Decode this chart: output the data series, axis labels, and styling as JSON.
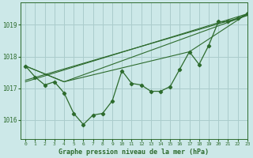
{
  "title": "Graphe pression niveau de la mer (hPa)",
  "bg_color": "#cce8e8",
  "grid_color": "#aacccc",
  "line_color": "#2d6b2d",
  "xlim": [
    -0.5,
    23
  ],
  "ylim": [
    1015.4,
    1019.7
  ],
  "yticks": [
    1016,
    1017,
    1018,
    1019
  ],
  "xticks": [
    0,
    1,
    2,
    3,
    4,
    5,
    6,
    7,
    8,
    9,
    10,
    11,
    12,
    13,
    14,
    15,
    16,
    17,
    18,
    19,
    20,
    21,
    22,
    23
  ],
  "main_series_x": [
    0,
    1,
    2,
    3,
    4,
    5,
    6,
    7,
    8,
    9,
    10,
    11,
    12,
    13,
    14,
    15,
    16,
    17,
    18,
    19,
    20,
    21,
    22,
    23
  ],
  "main_series_y": [
    1017.7,
    1017.35,
    1017.1,
    1017.2,
    1016.85,
    1016.2,
    1015.85,
    1016.15,
    1016.2,
    1016.6,
    1017.55,
    1017.15,
    1017.1,
    1016.9,
    1016.9,
    1017.05,
    1017.6,
    1018.15,
    1017.75,
    1018.35,
    1019.1,
    1019.1,
    1019.2,
    1019.35
  ],
  "line1_x": [
    0,
    23
  ],
  "line1_y": [
    1017.25,
    1019.3
  ],
  "line2_x": [
    0,
    23
  ],
  "line2_y": [
    1017.2,
    1019.35
  ],
  "line3_x": [
    0,
    4,
    23
  ],
  "line3_y": [
    1017.7,
    1017.2,
    1019.3
  ],
  "line4_x": [
    0,
    4,
    17,
    23
  ],
  "line4_y": [
    1017.7,
    1017.2,
    1018.15,
    1019.35
  ]
}
